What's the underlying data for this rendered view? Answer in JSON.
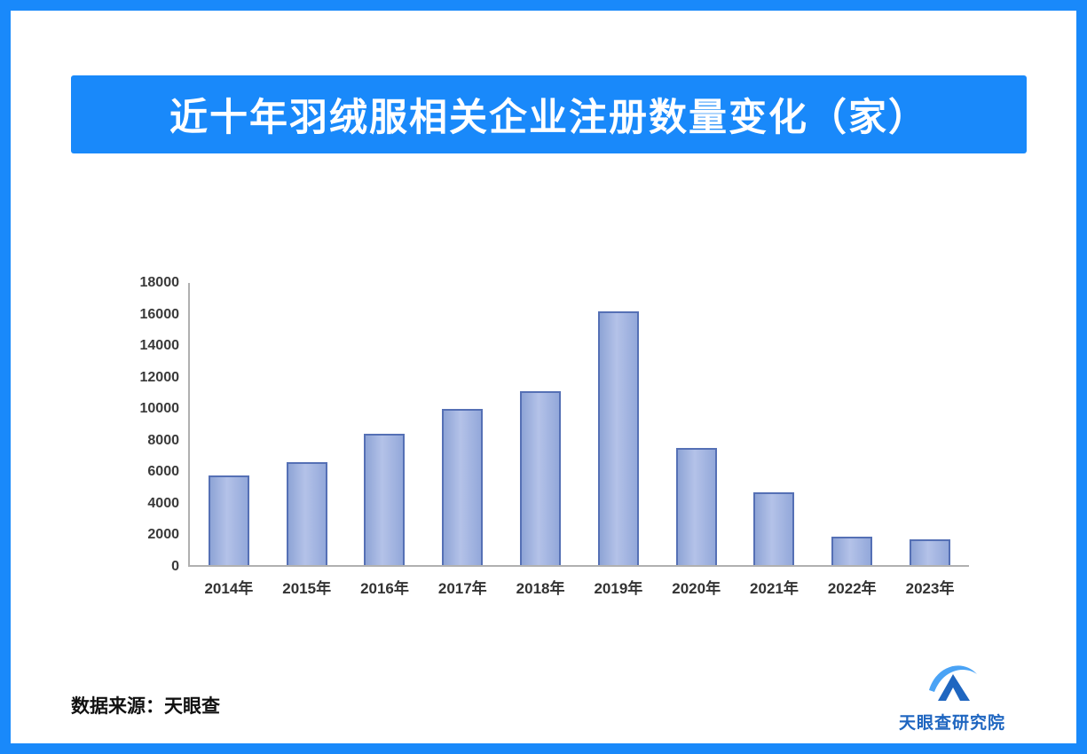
{
  "banner": {
    "title": "近十年羽绒服相关企业注册数量变化（家）",
    "bg_color": "#1989fa"
  },
  "frame": {
    "border_color": "#1989fa"
  },
  "chart_data": {
    "type": "bar",
    "categories": [
      "2014年",
      "2015年",
      "2016年",
      "2017年",
      "2018年",
      "2019年",
      "2020年",
      "2021年",
      "2022年",
      "2023年"
    ],
    "values": [
      5700,
      6500,
      8300,
      9900,
      11000,
      16100,
      7450,
      4600,
      1800,
      1650
    ],
    "title": "近十年羽绒服相关企业注册数量变化（家）",
    "xlabel": "",
    "ylabel": "",
    "ylim": [
      0,
      18000
    ],
    "yticks": [
      0,
      2000,
      4000,
      6000,
      8000,
      10000,
      12000,
      14000,
      16000,
      18000
    ],
    "grid": false,
    "legend": false,
    "bar_fill": "#9db0dd",
    "bar_border": "#5570b5"
  },
  "footer": {
    "source_label": "数据来源：天眼查",
    "brand_name": "天眼查研究院",
    "brand_color": "#1f66c0"
  }
}
